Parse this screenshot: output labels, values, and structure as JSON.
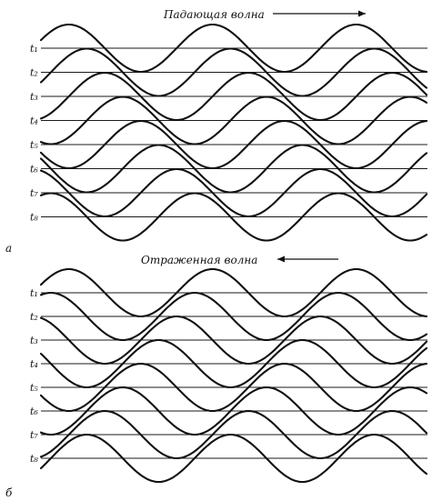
{
  "figure": {
    "panel_a": {
      "letter": "а",
      "title": "Падающая волна",
      "direction": "right",
      "time_labels": [
        "t₁",
        "t₂",
        "t₃",
        "t₄",
        "t₅",
        "t₆",
        "t₇",
        "t₈"
      ]
    },
    "panel_b": {
      "letter": "б",
      "title": "Отраженная волна",
      "direction": "left",
      "time_labels": [
        "t₁",
        "t₂",
        "t₃",
        "t₄",
        "t₅",
        "t₆",
        "t₇",
        "t₈"
      ]
    },
    "colors": {
      "ink": "#111111",
      "background": "#ffffff"
    }
  }
}
